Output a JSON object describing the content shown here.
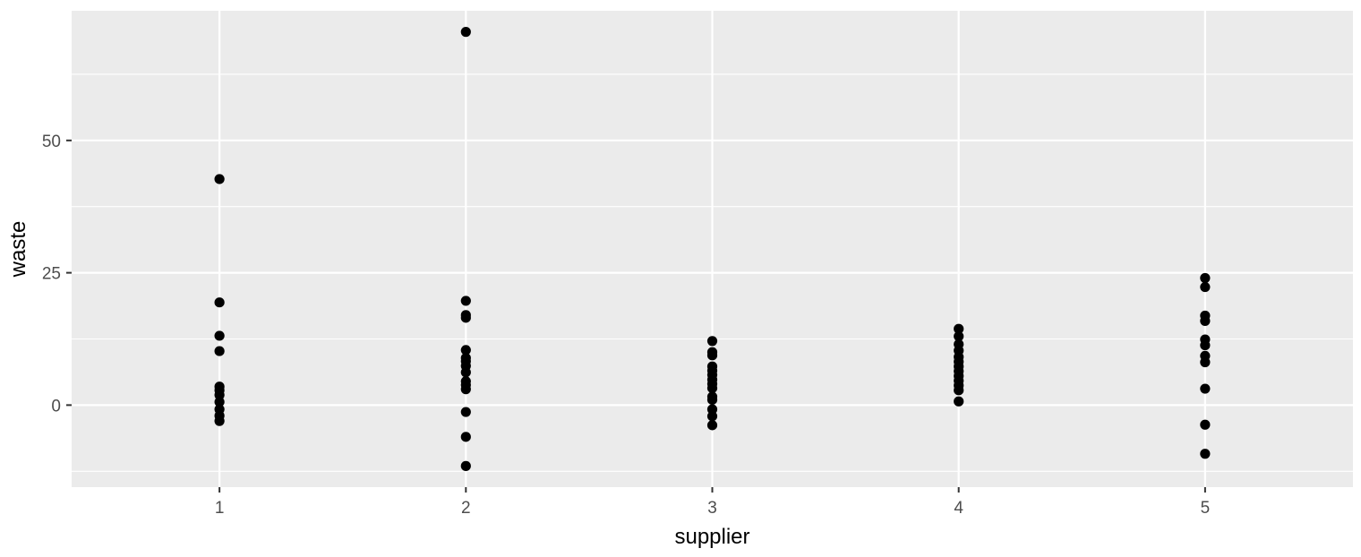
{
  "chart_data": {
    "type": "scatter",
    "title": "",
    "xlabel": "supplier",
    "ylabel": "waste",
    "x_categories": [
      "1",
      "2",
      "3",
      "4",
      "5"
    ],
    "xlim": [
      0.4,
      5.6
    ],
    "ylim": [
      -15.5,
      74.5
    ],
    "y_ticks": [
      0,
      25,
      50
    ],
    "y_tick_labels": [
      "0",
      "25",
      "50"
    ],
    "grid": true,
    "legend": "none",
    "colors": {
      "panel": "#ebebeb",
      "grid": "#ffffff",
      "point": "#000000",
      "tick_text": "#4d4d4d",
      "tick_mark": "#333333"
    },
    "series": [
      {
        "points": [
          {
            "x": 1,
            "y": 42.7
          },
          {
            "x": 1,
            "y": 19.4
          },
          {
            "x": 1,
            "y": 13.1
          },
          {
            "x": 1,
            "y": 10.2
          },
          {
            "x": 1,
            "y": 3.5
          },
          {
            "x": 1,
            "y": 2.8
          },
          {
            "x": 1,
            "y": 1.9
          },
          {
            "x": 1,
            "y": 0.6
          },
          {
            "x": 1,
            "y": -0.8
          },
          {
            "x": 1,
            "y": -2.0
          },
          {
            "x": 1,
            "y": -3.0
          },
          {
            "x": 2,
            "y": 70.5
          },
          {
            "x": 2,
            "y": 19.7
          },
          {
            "x": 2,
            "y": 17.0
          },
          {
            "x": 2,
            "y": 16.5
          },
          {
            "x": 2,
            "y": 10.4
          },
          {
            "x": 2,
            "y": 8.9
          },
          {
            "x": 2,
            "y": 8.3
          },
          {
            "x": 2,
            "y": 7.4
          },
          {
            "x": 2,
            "y": 6.2
          },
          {
            "x": 2,
            "y": 4.5
          },
          {
            "x": 2,
            "y": 3.8
          },
          {
            "x": 2,
            "y": 3.0
          },
          {
            "x": 2,
            "y": -1.3
          },
          {
            "x": 2,
            "y": -6.0
          },
          {
            "x": 2,
            "y": -11.5
          },
          {
            "x": 3,
            "y": 12.1
          },
          {
            "x": 3,
            "y": 10.0
          },
          {
            "x": 3,
            "y": 9.4
          },
          {
            "x": 3,
            "y": 7.3
          },
          {
            "x": 3,
            "y": 6.5
          },
          {
            "x": 3,
            "y": 5.7
          },
          {
            "x": 3,
            "y": 4.8
          },
          {
            "x": 3,
            "y": 4.0
          },
          {
            "x": 3,
            "y": 3.2
          },
          {
            "x": 3,
            "y": 1.6
          },
          {
            "x": 3,
            "y": 1.0
          },
          {
            "x": 3,
            "y": -0.8
          },
          {
            "x": 3,
            "y": -2.1
          },
          {
            "x": 3,
            "y": -3.8
          },
          {
            "x": 4,
            "y": 14.4
          },
          {
            "x": 4,
            "y": 13.0
          },
          {
            "x": 4,
            "y": 11.5
          },
          {
            "x": 4,
            "y": 10.3
          },
          {
            "x": 4,
            "y": 9.1
          },
          {
            "x": 4,
            "y": 8.2
          },
          {
            "x": 4,
            "y": 7.3
          },
          {
            "x": 4,
            "y": 6.4
          },
          {
            "x": 4,
            "y": 5.5
          },
          {
            "x": 4,
            "y": 4.6
          },
          {
            "x": 4,
            "y": 3.7
          },
          {
            "x": 4,
            "y": 2.8
          },
          {
            "x": 4,
            "y": 0.7
          },
          {
            "x": 5,
            "y": 24.0
          },
          {
            "x": 5,
            "y": 22.3
          },
          {
            "x": 5,
            "y": 16.9
          },
          {
            "x": 5,
            "y": 15.9
          },
          {
            "x": 5,
            "y": 12.4
          },
          {
            "x": 5,
            "y": 11.3
          },
          {
            "x": 5,
            "y": 9.3
          },
          {
            "x": 5,
            "y": 8.1
          },
          {
            "x": 5,
            "y": 3.1
          },
          {
            "x": 5,
            "y": -3.7
          },
          {
            "x": 5,
            "y": -9.2
          }
        ]
      }
    ]
  }
}
